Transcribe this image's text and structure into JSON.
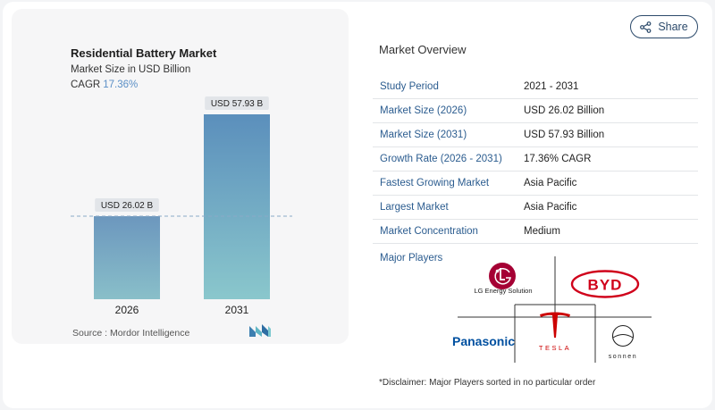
{
  "chart_data": {
    "type": "bar",
    "title": "Residential Battery Market",
    "subtitle": "Market Size in USD Billion",
    "cagr_label": "CAGR",
    "cagr_value": "17.36%",
    "categories": [
      "2026",
      "2031"
    ],
    "values": [
      26.02,
      57.93
    ],
    "data_labels": [
      "USD 26.02 B",
      "USD 57.93 B"
    ],
    "ylim": [
      0,
      60
    ],
    "bar_colors": [
      [
        "#6c97be",
        "#89bfc9"
      ],
      [
        "#5b8fbc",
        "#8ac7cc"
      ]
    ],
    "reference_line_value": 26.02
  },
  "source": "Source :  Mordor Intelligence",
  "share": {
    "label": "Share"
  },
  "overview": {
    "title": "Market Overview",
    "rows": [
      {
        "label": "Study Period",
        "value": "2021 - 2031"
      },
      {
        "label": "Market Size (2026)",
        "value": "USD 26.02 Billion"
      },
      {
        "label": "Market Size (2031)",
        "value": "USD 57.93 Billion"
      },
      {
        "label": "Growth Rate (2026 - 2031)",
        "value": "17.36% CAGR"
      },
      {
        "label": "Fastest Growing Market",
        "value": "Asia Pacific"
      },
      {
        "label": "Largest Market",
        "value": "Asia Pacific"
      },
      {
        "label": "Market Concentration",
        "value": "Medium"
      }
    ]
  },
  "players": {
    "label": "Major Players",
    "lg_text": "LG Energy Solution",
    "byd_text": "BYD",
    "panasonic_text": "Panasonic",
    "tesla_text": "TESLA",
    "sonnen_text": "sonnen"
  },
  "disclaimer": "*Disclaimer: Major Players sorted in no particular order",
  "colors": {
    "accent": "#2b5c8f",
    "lg_red": "#a50034",
    "byd_red": "#d0021b",
    "panasonic_blue": "#0050a0",
    "tesla_red": "#cc0000"
  }
}
